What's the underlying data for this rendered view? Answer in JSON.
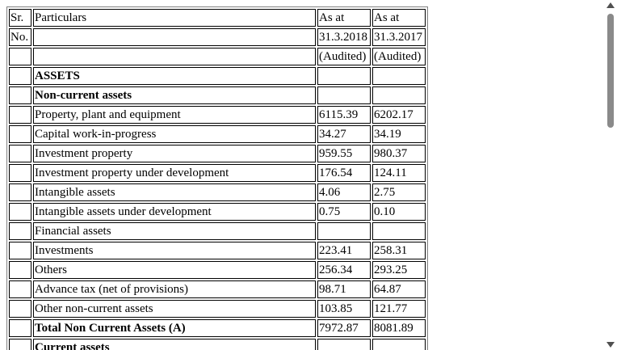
{
  "header": {
    "sr_label_1": "Sr.",
    "sr_label_2": "No.",
    "particulars": "Particulars",
    "col1_line1": "As at",
    "col1_line2": "31.3.2018",
    "col1_line3": "(Audited)",
    "col2_line1": "As at",
    "col2_line2": "31.3.2017",
    "col2_line3": "(Audited)"
  },
  "rows": [
    {
      "sr": "",
      "label": "ASSETS",
      "v2018": "",
      "v2017": ""
    },
    {
      "sr": "",
      "label": "Non-current assets",
      "v2018": "",
      "v2017": ""
    },
    {
      "sr": "",
      "label": "Property, plant and equipment",
      "v2018": "6115.39",
      "v2017": "6202.17"
    },
    {
      "sr": "",
      "label": "Capital work-in-progress",
      "v2018": "34.27",
      "v2017": "34.19"
    },
    {
      "sr": "",
      "label": "Investment property",
      "v2018": "959.55",
      "v2017": "980.37"
    },
    {
      "sr": "",
      "label": "Investment property under development",
      "v2018": "176.54",
      "v2017": "124.11"
    },
    {
      "sr": "",
      "label": "Intangible assets",
      "v2018": "4.06",
      "v2017": "2.75"
    },
    {
      "sr": "",
      "label": "Intangible assets under development",
      "v2018": "0.75",
      "v2017": "0.10"
    },
    {
      "sr": "",
      "label": "Financial assets",
      "v2018": "",
      "v2017": ""
    },
    {
      "sr": "",
      "label": "Investments",
      "v2018": "223.41",
      "v2017": "258.31"
    },
    {
      "sr": "",
      "label": "Others",
      "v2018": "256.34",
      "v2017": "293.25"
    },
    {
      "sr": "",
      "label": "Advance tax (net of provisions)",
      "v2018": "98.71",
      "v2017": "64.87"
    },
    {
      "sr": "",
      "label": "Other non-current assets",
      "v2018": "103.85",
      "v2017": "121.77"
    },
    {
      "sr": "",
      "label": "Total Non Current Assets (A)",
      "v2018": "7972.87",
      "v2017": "8081.89"
    },
    {
      "sr": "",
      "label": "Current assets",
      "v2018": "",
      "v2017": ""
    }
  ]
}
